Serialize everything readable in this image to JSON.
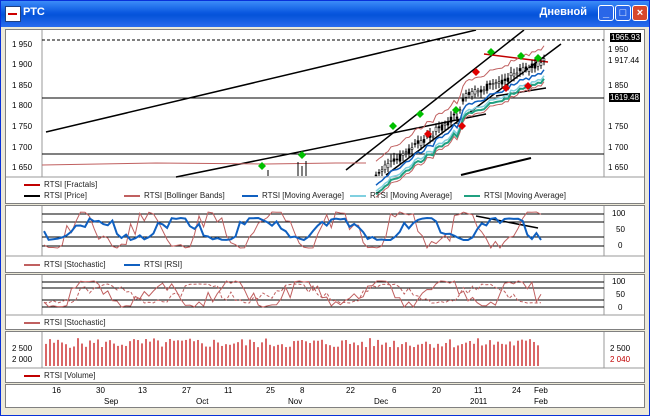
{
  "window": {
    "title": "РТС",
    "timeframe": "Дневной",
    "buttons": {
      "minimize": "_",
      "maximize": "□",
      "close": "×"
    }
  },
  "price_panel": {
    "y_ticks": [
      "1 950",
      "1 900",
      "1 850",
      "1 800",
      "1 750",
      "1 700",
      "1 650"
    ],
    "y_ticks_right": [
      "1 950",
      "1 900",
      "1 850",
      "1 800",
      "1 750",
      "1 700",
      "1 650"
    ],
    "price_tags": {
      "top": "1965.93",
      "mid": "1 917.44",
      "level": "1619.48"
    },
    "legend": [
      {
        "label": "RTSI [Fractals]",
        "color": "#c00000"
      },
      {
        "label": "RTSI [Price]",
        "color": "#000000"
      },
      {
        "label": "RTSI [Bollinger Bands]",
        "color": "#c06060"
      },
      {
        "label": "RTSI [Moving Average]",
        "color": "#1060c0"
      },
      {
        "label": "RTSI [Moving Average]",
        "color": "#80d0e0"
      },
      {
        "label": "RTSI [Moving Average]",
        "color": "#20a080"
      }
    ]
  },
  "rsi_panel": {
    "y_ticks": [
      "100",
      "50",
      "0"
    ],
    "legend": [
      {
        "label": "RTSI [Stochastic]",
        "color": "#c06060"
      },
      {
        "label": "RTSI [RSI]",
        "color": "#1060c0"
      }
    ]
  },
  "stoch_panel": {
    "y_ticks": [
      "100",
      "50",
      "0"
    ],
    "legend": [
      {
        "label": "RTSI [Stochastic]",
        "color": "#c06060"
      }
    ]
  },
  "volume_panel": {
    "y_left": "2 500",
    "y_left2": "2 000",
    "y_right": "2 500",
    "y_right2": "2 040",
    "legend": [
      {
        "label": "RTSI [Volume]",
        "color": "#c00000"
      }
    ]
  },
  "x_axis": {
    "days": [
      "16",
      "30",
      "13",
      "27",
      "11",
      "25",
      "8",
      "22",
      "6",
      "20",
      "11",
      "24",
      "Feb"
    ],
    "months": [
      "Sep",
      "Oct",
      "Nov",
      "Dec",
      "2011",
      "Feb"
    ]
  },
  "colors": {
    "fractal_up": "#00c000",
    "fractal_down": "#e00000",
    "bollinger": "#c06060",
    "ma1": "#1060c0",
    "ma2": "#80d0e0",
    "ma3": "#20a080"
  }
}
